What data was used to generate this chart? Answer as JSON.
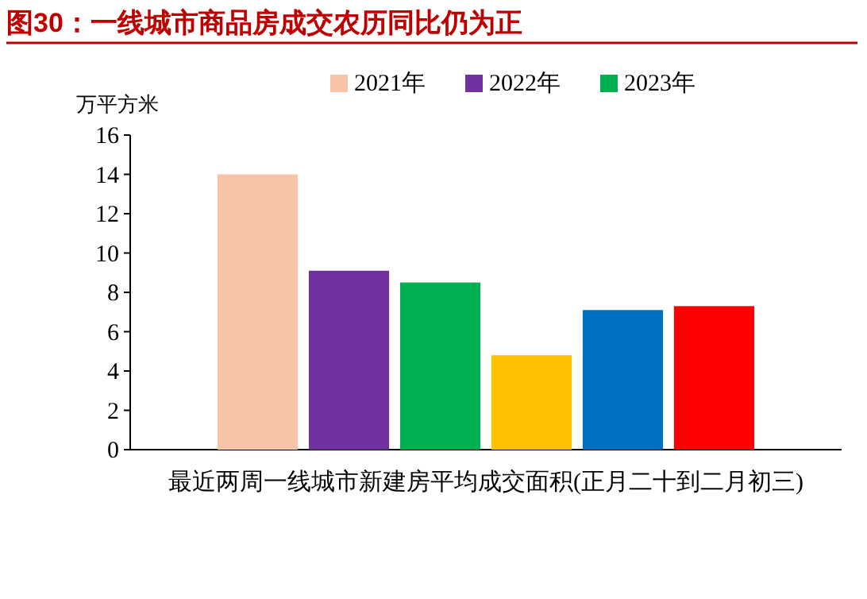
{
  "chart_data": {
    "type": "bar",
    "title": "图30：一线城市商品房成交农历同比仍为正",
    "ylabel": "万平方米",
    "categories": [
      "最近两周一线城市新建房平均成交面积(正月二十到二月初三)"
    ],
    "series": [
      {
        "name": "2021年",
        "color": "#f8c4a8",
        "values": [
          14.0
        ]
      },
      {
        "name": "2022年",
        "color": "#7030a0",
        "values": [
          9.1
        ]
      },
      {
        "name": "2023年",
        "color": "#00b050",
        "values": [
          8.5
        ]
      },
      {
        "color": "#ffc000",
        "values": [
          4.8
        ]
      },
      {
        "color": "#0070c0",
        "values": [
          7.1
        ]
      },
      {
        "color": "#ff0000",
        "values": [
          7.3
        ]
      }
    ],
    "ylim": [
      0,
      16
    ],
    "yticks": [
      0,
      2,
      4,
      6,
      8,
      10,
      12,
      14,
      16
    ],
    "legend": "top",
    "grid": false
  }
}
